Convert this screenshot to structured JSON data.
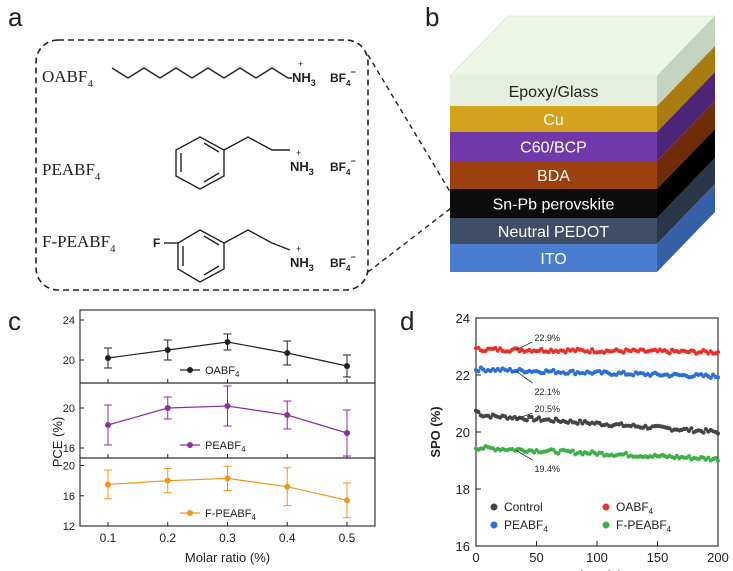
{
  "panels": {
    "a": "a",
    "b": "b",
    "c": "c",
    "d": "d"
  },
  "panel_a": {
    "molecules": [
      {
        "name": "OABF",
        "sub": "4",
        "group": "NH",
        "group_sub": "3",
        "anion": "BF",
        "anion_sub": "4",
        "anion_sup": "−",
        "cation_sup": "+"
      },
      {
        "name": "PEABF",
        "sub": "4",
        "group": "NH",
        "group_sub": "3",
        "anion": "BF",
        "anion_sub": "4",
        "anion_sup": "−",
        "cation_sup": "+"
      },
      {
        "name": "F-PEABF",
        "sub": "4",
        "group": "NH",
        "group_sub": "3",
        "anion": "BF",
        "anion_sub": "4",
        "anion_sup": "−",
        "cation_sup": "+",
        "substituent": "F"
      }
    ]
  },
  "panel_b": {
    "layers": [
      {
        "label": "Epoxy/Glass",
        "front": "#e4efe0",
        "side": "#c4d4c0",
        "top": "#eef6ea",
        "text": "#222222"
      },
      {
        "label": "Cu",
        "front": "#d4a21c",
        "side": "#a87c10",
        "text": "#ffffff"
      },
      {
        "label": "C60/BCP",
        "front": "#7038a8",
        "side": "#4e2478",
        "text": "#ffffff"
      },
      {
        "label": "BDA",
        "front": "#9c4010",
        "side": "#6e2c08",
        "text": "#ffffff"
      },
      {
        "label": "Sn-Pb perovskite",
        "front": "#0c0c0c",
        "side": "#000000",
        "text": "#ffffff"
      },
      {
        "label": "Neutral PEDOT",
        "front": "#3e4e66",
        "side": "#2a374a",
        "text": "#ffffff"
      },
      {
        "label": "ITO",
        "front": "#4a7cd0",
        "side": "#3560a8",
        "text": "#ffffff"
      }
    ]
  },
  "chart_data": [
    {
      "type": "line",
      "panel": "c",
      "xlabel": "Molar ratio (%)",
      "ylabel": "PCE (%)",
      "x": [
        0.1,
        0.2,
        0.3,
        0.4,
        0.5
      ],
      "x_ticks": [
        "0.1",
        "0.2",
        "0.3",
        "0.4",
        "0.5"
      ],
      "subplots": [
        {
          "name": "OABF",
          "sub": "4",
          "color": "#222222",
          "y": [
            20.2,
            21.0,
            21.8,
            20.7,
            19.4
          ],
          "err": [
            1.0,
            1.0,
            0.8,
            1.2,
            1.1
          ],
          "ylim": [
            17.7,
            25.0
          ],
          "y_ticks": [
            "20",
            "24"
          ],
          "y_tick_values": [
            20,
            24
          ]
        },
        {
          "name": "PEABF",
          "sub": "4",
          "color": "#8b2f9c",
          "y": [
            18.3,
            20.0,
            20.2,
            19.3,
            17.5
          ],
          "err": [
            2.0,
            1.1,
            2.0,
            1.4,
            2.3
          ],
          "ylim": [
            15.0,
            22.5
          ],
          "y_ticks": [
            "16",
            "20"
          ],
          "y_tick_values": [
            16,
            20
          ]
        },
        {
          "name": "F-PEABF",
          "sub": "4",
          "color": "#f0961a",
          "y": [
            17.5,
            18.0,
            18.3,
            17.2,
            15.4
          ],
          "err": [
            1.9,
            1.6,
            1.6,
            2.5,
            2.3
          ],
          "ylim": [
            12.0,
            21.0
          ],
          "y_ticks": [
            "12",
            "16",
            "20"
          ],
          "y_tick_values": [
            12,
            16,
            20
          ]
        }
      ]
    },
    {
      "type": "scatter",
      "panel": "d",
      "xlabel": "Time (s)",
      "ylabel": "SPO (%)",
      "xlim": [
        0,
        200
      ],
      "ylim": [
        16,
        24
      ],
      "x_ticks": [
        "0",
        "50",
        "100",
        "150",
        "200"
      ],
      "x_tick_values": [
        0,
        50,
        100,
        150,
        200
      ],
      "y_ticks": [
        "16",
        "18",
        "20",
        "22",
        "24"
      ],
      "y_tick_values": [
        16,
        18,
        20,
        22,
        24
      ],
      "series": [
        {
          "name": "Control",
          "sub": "",
          "color": "#454545",
          "start": 20.6,
          "end": 20.0,
          "annotation": "20.5%",
          "ann_x": 45,
          "ann_y": 20.8
        },
        {
          "name": "OABF",
          "sub": "4",
          "color": "#e8312b",
          "start": 22.9,
          "end": 22.8,
          "annotation": "22.9%",
          "ann_x": 45,
          "ann_y": 23.3
        },
        {
          "name": "PEABF",
          "sub": "4",
          "color": "#2e6fd6",
          "start": 22.2,
          "end": 21.95,
          "annotation": "22.1%",
          "ann_x": 45,
          "ann_y": 21.4
        },
        {
          "name": "F-PEABF",
          "sub": "4",
          "color": "#3eb04a",
          "start": 19.45,
          "end": 19.05,
          "annotation": "19.4%",
          "ann_x": 45,
          "ann_y": 18.7
        }
      ]
    }
  ]
}
